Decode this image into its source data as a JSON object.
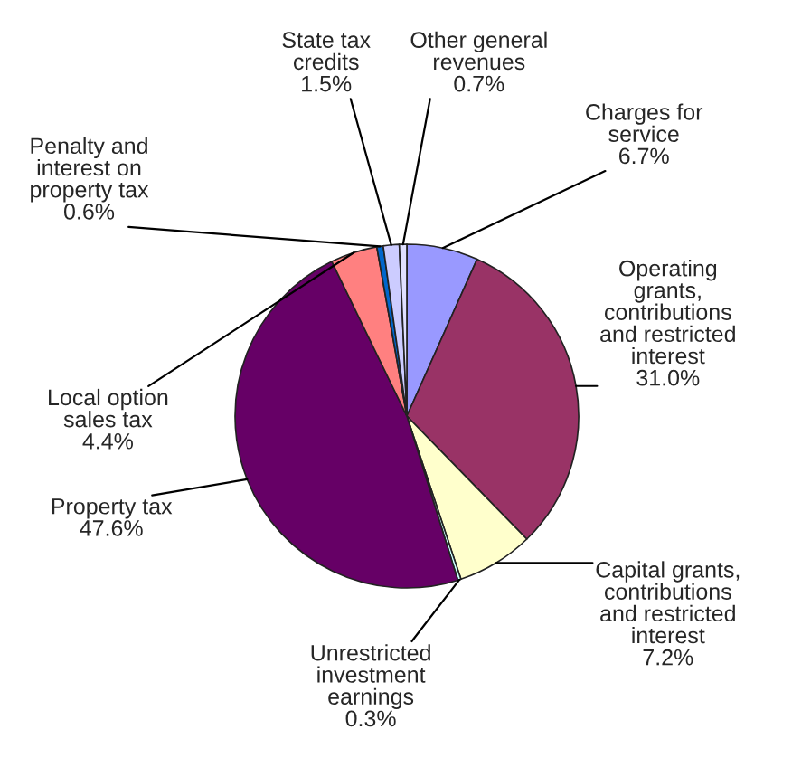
{
  "chart_data": {
    "type": "pie",
    "categories": [
      "Charges for service",
      "Operating grants, contributions and restricted interest",
      "Capital grants, contributions and restricted interest",
      "Unrestricted investment earnings",
      "Property tax",
      "Local option sales tax",
      "Penalty and interest on property tax",
      "State tax credits",
      "Other general revenues"
    ],
    "values": [
      6.7,
      31.0,
      7.2,
      0.3,
      47.6,
      4.4,
      0.6,
      1.5,
      0.7
    ],
    "value_labels": [
      "6.7%",
      "31.0%",
      "7.2%",
      "0.3%",
      "47.6%",
      "4.4%",
      "0.6%",
      "1.5%",
      "0.7%"
    ],
    "colors": [
      "#9999ff",
      "#993366",
      "#ffffcc",
      "#ccffff",
      "#660066",
      "#ff8080",
      "#0066cc",
      "#ccccff",
      "#e0e0ff"
    ]
  }
}
